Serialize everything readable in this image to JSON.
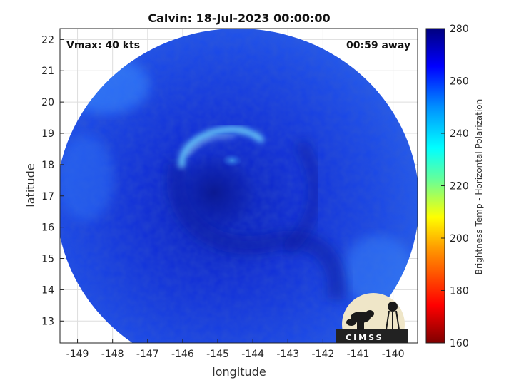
{
  "chart_data": {
    "type": "heatmap",
    "title": "Calvin: 18-Jul-2023 00:00:00",
    "xlabel": "longitude",
    "ylabel": "latitude",
    "xlim": [
      -149.5,
      -139.3
    ],
    "ylim": [
      12.3,
      22.35
    ],
    "xticks": [
      -149,
      -148,
      -147,
      -146,
      -145,
      -144,
      -143,
      -142,
      -141,
      -140
    ],
    "yticks": [
      13,
      14,
      15,
      16,
      17,
      18,
      19,
      20,
      21,
      22
    ],
    "grid": true,
    "annotations": {
      "left": "Vmax: 40 kts",
      "right": "00:59 away"
    },
    "colorbar": {
      "label": "Brightness Temp - Horizontal Polarization",
      "min": 160,
      "max": 280,
      "ticks": [
        160,
        180,
        200,
        220,
        240,
        260,
        280
      ]
    },
    "storm_center": {
      "lon": -144.6,
      "lat": 16.9
    },
    "logo_text": "CIMSS"
  }
}
